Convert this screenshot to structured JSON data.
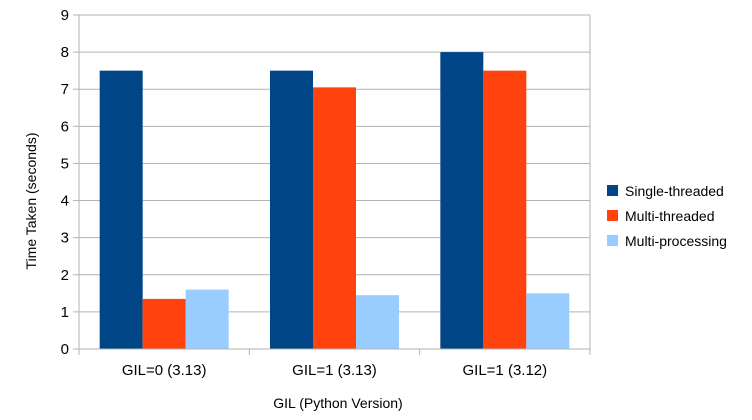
{
  "chart_data": {
    "type": "bar",
    "title": "",
    "xlabel": "GIL (Python Version)",
    "ylabel": "Time Taken (seconds)",
    "categories": [
      "GIL=0 (3.13)",
      "GIL=1 (3.13)",
      "GIL=1 (3.12)"
    ],
    "ylim": [
      0,
      9
    ],
    "yticks": [
      0,
      1,
      2,
      3,
      4,
      5,
      6,
      7,
      8,
      9
    ],
    "grid": true,
    "legend_position": "right",
    "series": [
      {
        "name": "Single-threaded",
        "color": "#004586",
        "values": [
          7.5,
          7.5,
          8.0
        ]
      },
      {
        "name": "Multi-threaded",
        "color": "#ff420e",
        "values": [
          1.35,
          7.05,
          7.5
        ]
      },
      {
        "name": "Multi-processing",
        "color": "#99ccff",
        "values": [
          1.6,
          1.45,
          1.5
        ]
      }
    ]
  }
}
